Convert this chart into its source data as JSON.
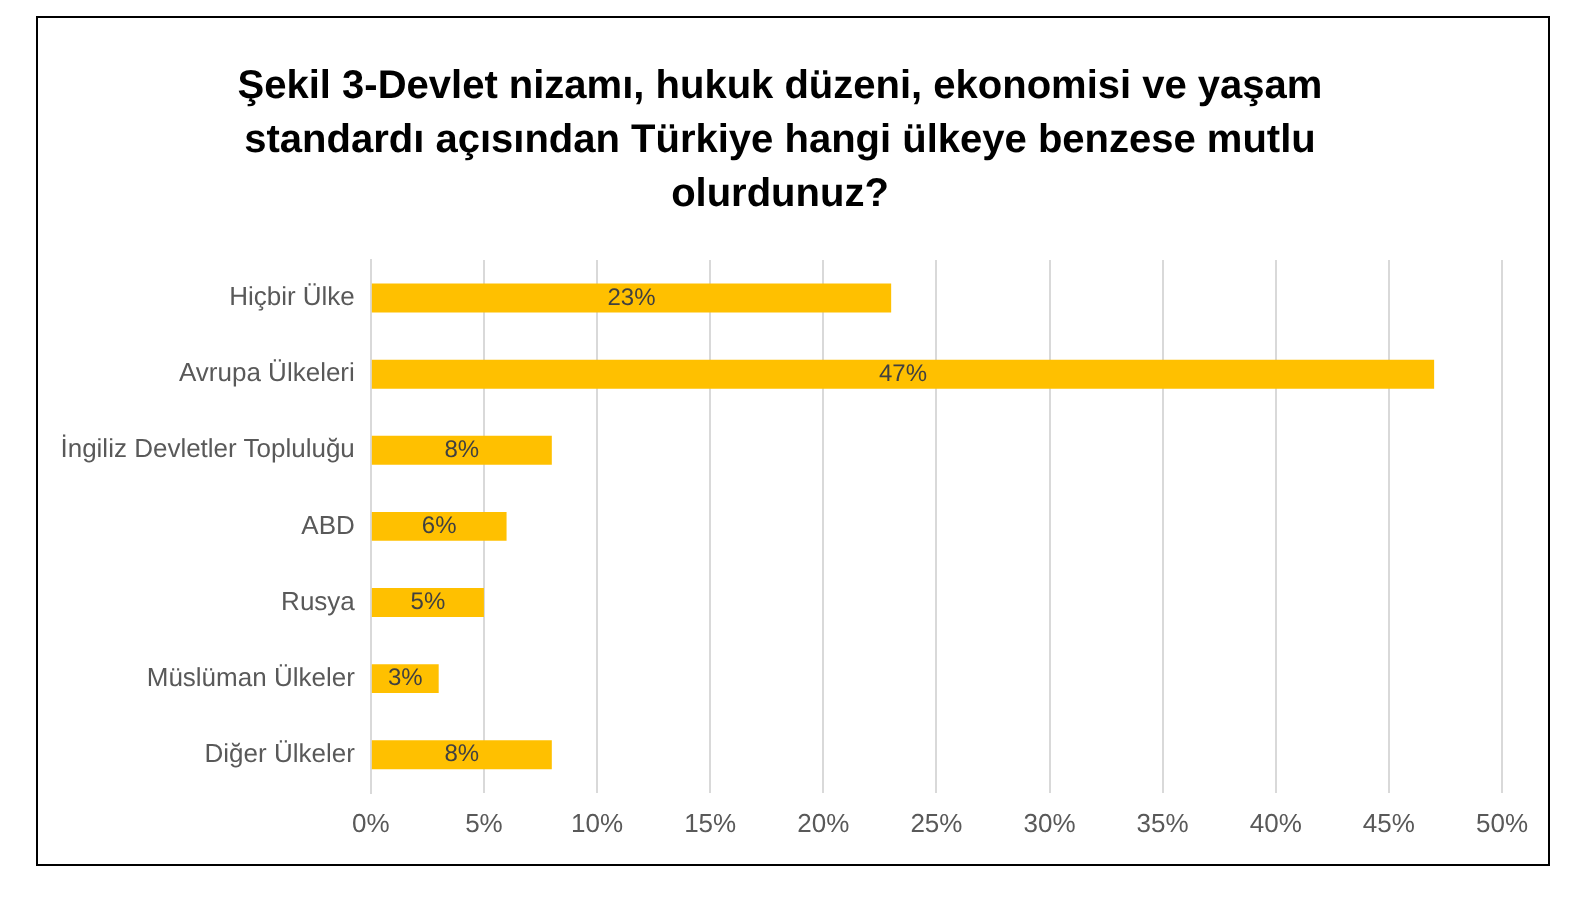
{
  "chart_data": {
    "type": "bar",
    "orientation": "horizontal",
    "title": "Şekil 3-Devlet nizamı, hukuk düzeni, ekonomisi ve yaşam standardı açısından Türkiye hangi ülkeye benzese mutlu olurdunuz?",
    "categories": [
      "Hiçbir Ülke",
      "Avrupa Ülkeleri",
      "İngiliz Devletler Topluluğu",
      "ABD",
      "Rusya",
      "Müslüman Ülkeler",
      "Diğer Ülkeler"
    ],
    "values": [
      23,
      47,
      8,
      6,
      5,
      3,
      8
    ],
    "value_labels": [
      "23%",
      "47%",
      "8%",
      "6%",
      "5%",
      "3%",
      "8%"
    ],
    "color": "#ffc000",
    "xlim": [
      0,
      50
    ],
    "xticks": [
      {
        "value": 0,
        "label": "0%"
      },
      {
        "value": 5,
        "label": "5%"
      },
      {
        "value": 10,
        "label": "10%"
      },
      {
        "value": 15,
        "label": "15%"
      },
      {
        "value": 20,
        "label": "20%"
      },
      {
        "value": 25,
        "label": "25%"
      },
      {
        "value": 30,
        "label": "30%"
      },
      {
        "value": 35,
        "label": "35%"
      },
      {
        "value": 40,
        "label": "40%"
      },
      {
        "value": 45,
        "label": "45%"
      },
      {
        "value": 50,
        "label": "50%"
      }
    ],
    "grid": "x",
    "legend": false
  }
}
